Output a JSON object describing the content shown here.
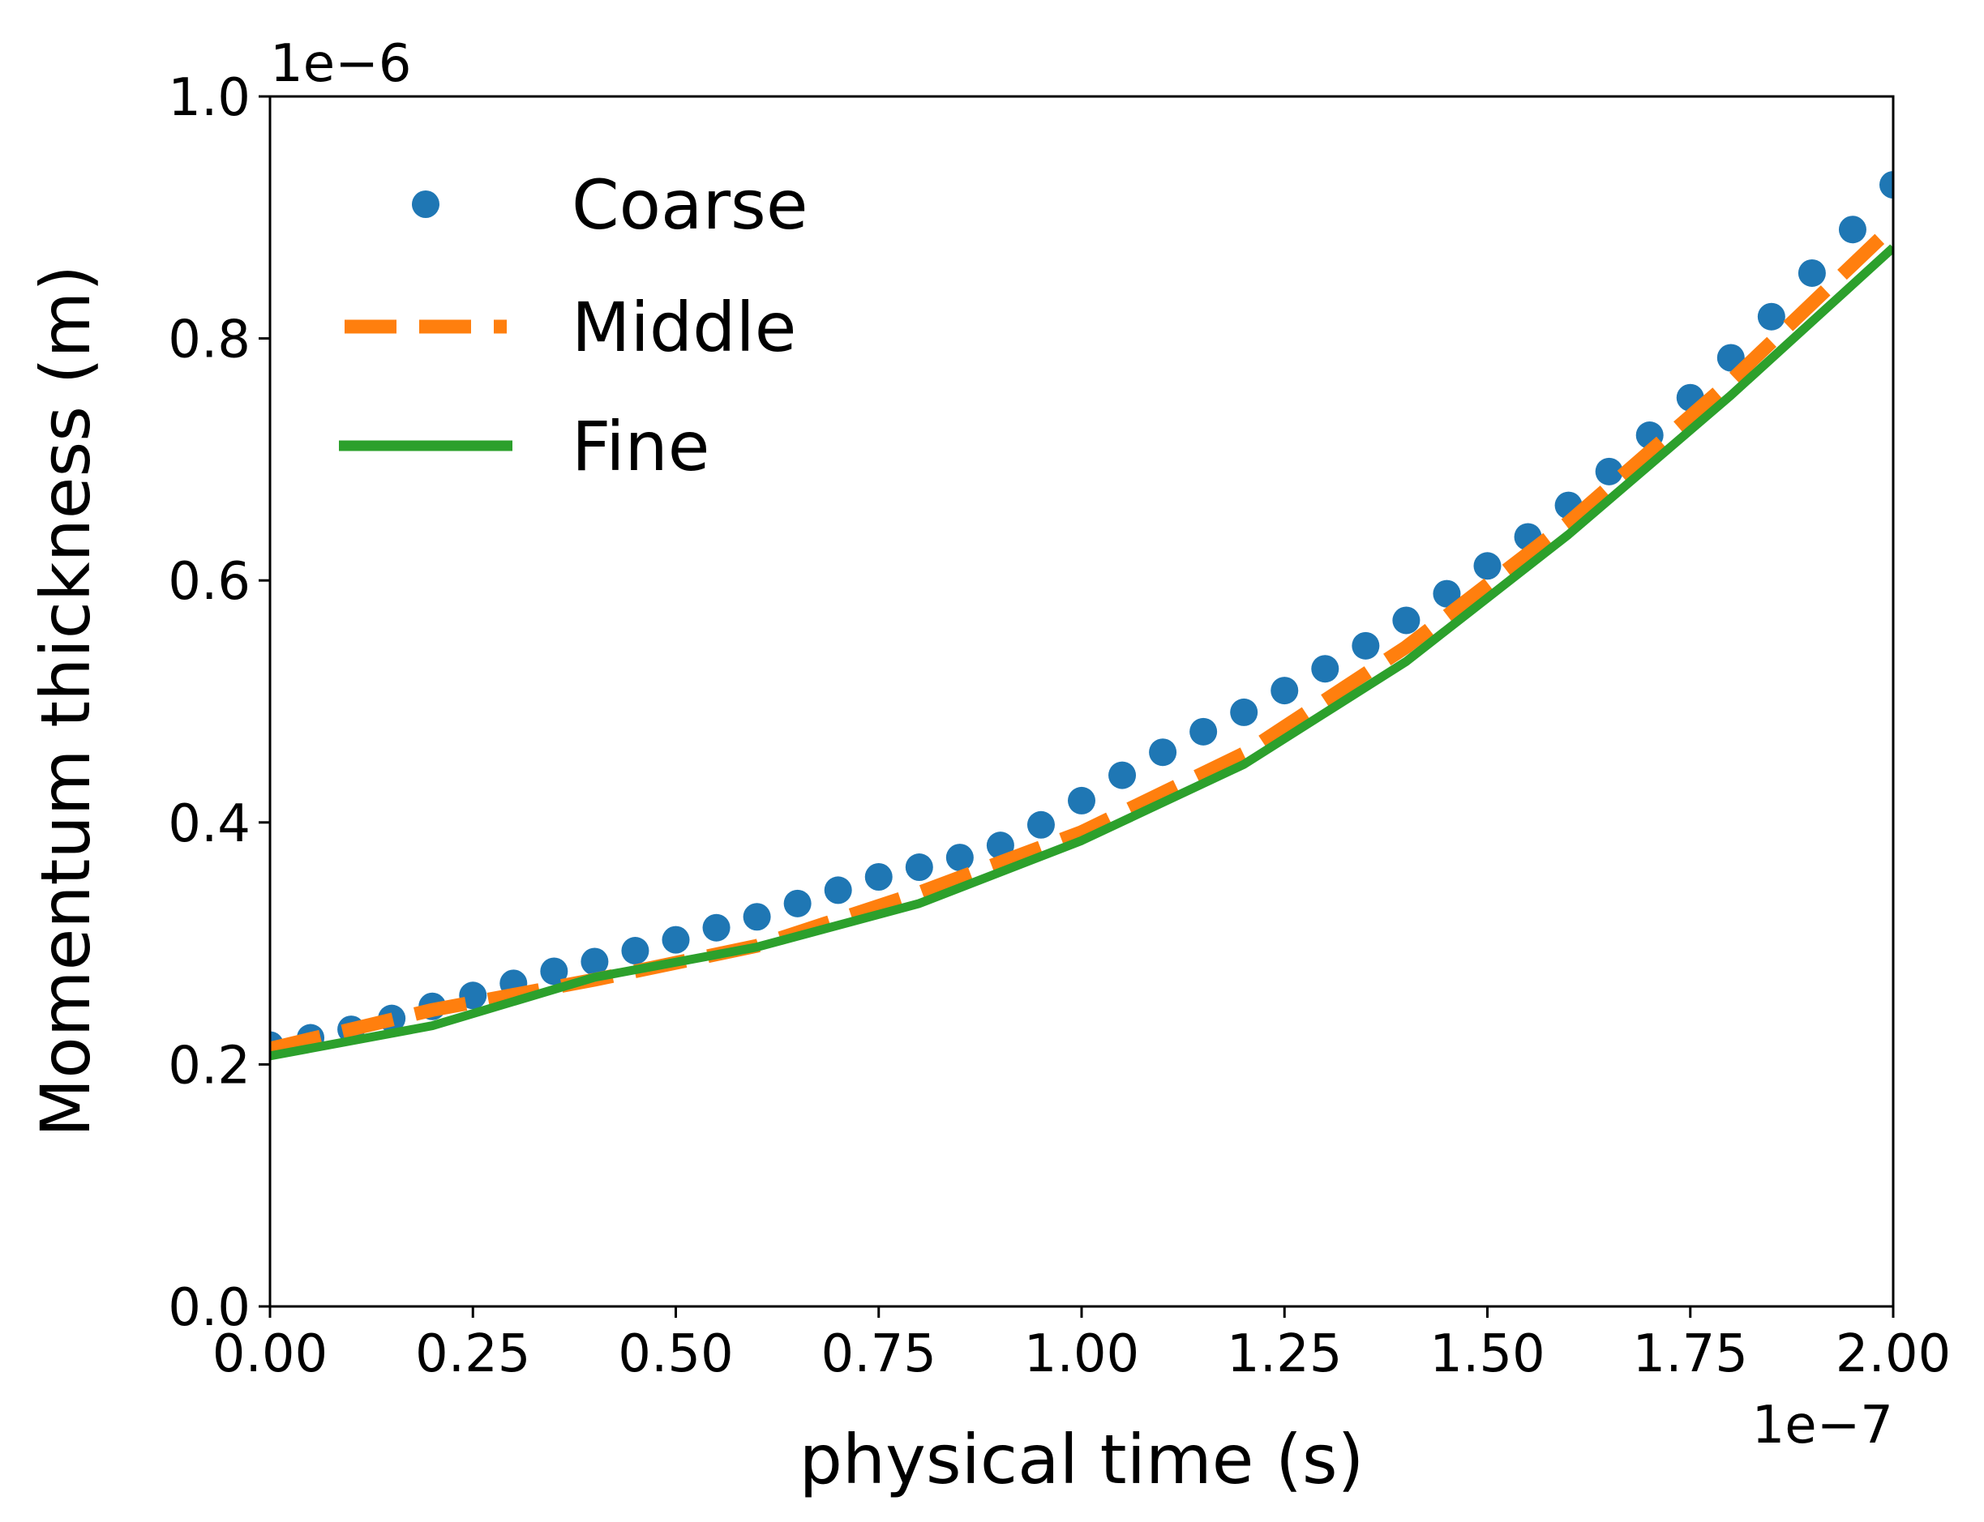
{
  "chart_data": {
    "type": "line",
    "xlabel": "physical time (s)",
    "ylabel": "Momentum thickness (m)",
    "x_offset_label": "1e−7",
    "y_offset_label": "1e−6",
    "xlim": [
      0,
      2.0
    ],
    "ylim": [
      0,
      1.0
    ],
    "x_ticks": [
      "0.00",
      "0.25",
      "0.50",
      "0.75",
      "1.00",
      "1.25",
      "1.50",
      "1.75",
      "2.00"
    ],
    "y_ticks": [
      "0.0",
      "0.2",
      "0.4",
      "0.6",
      "0.8",
      "1.0"
    ],
    "grid": false,
    "legend_position": "top-left",
    "series": [
      {
        "name": "Coarse",
        "style": "markers",
        "color": "#1f77b4",
        "x": [
          0.0,
          0.05,
          0.1,
          0.15,
          0.2,
          0.25,
          0.3,
          0.35,
          0.4,
          0.45,
          0.5,
          0.55,
          0.6,
          0.65,
          0.7,
          0.75,
          0.8,
          0.85,
          0.9,
          0.95,
          1.0,
          1.05,
          1.1,
          1.15,
          1.2,
          1.25,
          1.3,
          1.35,
          1.4,
          1.45,
          1.5,
          1.55,
          1.6,
          1.65,
          1.7,
          1.75,
          1.8,
          1.85,
          1.9,
          1.95,
          2.0
        ],
        "y": [
          0.216,
          0.222,
          0.229,
          0.238,
          0.248,
          0.257,
          0.267,
          0.277,
          0.285,
          0.294,
          0.303,
          0.313,
          0.322,
          0.333,
          0.344,
          0.355,
          0.363,
          0.371,
          0.381,
          0.398,
          0.418,
          0.439,
          0.458,
          0.475,
          0.491,
          0.509,
          0.527,
          0.546,
          0.567,
          0.589,
          0.612,
          0.636,
          0.662,
          0.69,
          0.72,
          0.751,
          0.784,
          0.818,
          0.854,
          0.89,
          0.927
        ]
      },
      {
        "name": "Middle",
        "style": "dashed",
        "color": "#ff7f0e",
        "x": [
          0.0,
          0.2,
          0.4,
          0.6,
          0.8,
          1.0,
          1.2,
          1.4,
          1.6,
          1.8,
          2.0
        ],
        "y": [
          0.213,
          0.245,
          0.27,
          0.298,
          0.342,
          0.392,
          0.457,
          0.545,
          0.648,
          0.765,
          0.893
        ]
      },
      {
        "name": "Fine",
        "style": "solid",
        "color": "#2ca02c",
        "x": [
          0.0,
          0.2,
          0.4,
          0.6,
          0.8,
          1.0,
          1.2,
          1.4,
          1.6,
          1.8,
          2.0
        ],
        "y": [
          0.207,
          0.232,
          0.272,
          0.297,
          0.333,
          0.385,
          0.448,
          0.533,
          0.638,
          0.753,
          0.875
        ]
      }
    ]
  }
}
